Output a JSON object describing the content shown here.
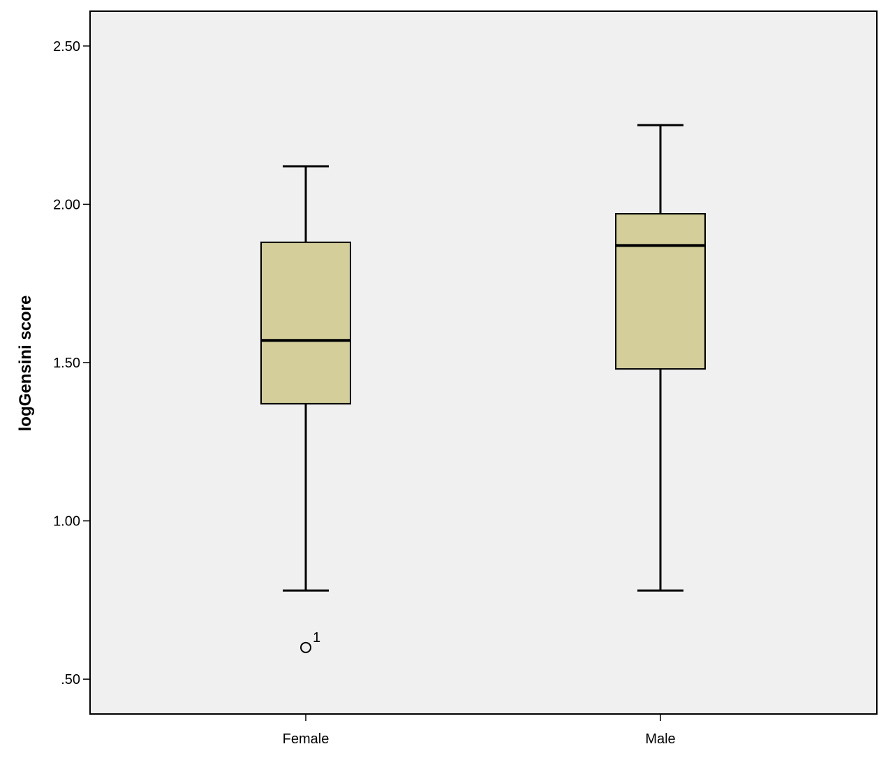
{
  "chart_data": {
    "type": "boxplot",
    "title": "",
    "xlabel": "",
    "ylabel": "logGensini score",
    "ylim": [
      0.39,
      2.61
    ],
    "yticks": [
      0.5,
      1.0,
      1.5,
      2.0,
      2.5
    ],
    "ytick_labels": [
      ".50",
      "1.00",
      "1.50",
      "2.00",
      "2.50"
    ],
    "grid": false,
    "categories": [
      "Female",
      "Male"
    ],
    "boxes": [
      {
        "category": "Female",
        "whisker_low": 0.78,
        "q1": 1.37,
        "median": 1.57,
        "q3": 1.88,
        "whisker_high": 2.12,
        "outliers": [
          {
            "value": 0.6,
            "label": "1"
          }
        ]
      },
      {
        "category": "Male",
        "whisker_low": 0.78,
        "q1": 1.48,
        "median": 1.87,
        "q3": 1.97,
        "whisker_high": 2.25,
        "outliers": []
      }
    ],
    "colors": {
      "plot_background": "#f0f0f0",
      "box_fill": "#d3ce9a",
      "line": "#000000"
    }
  }
}
